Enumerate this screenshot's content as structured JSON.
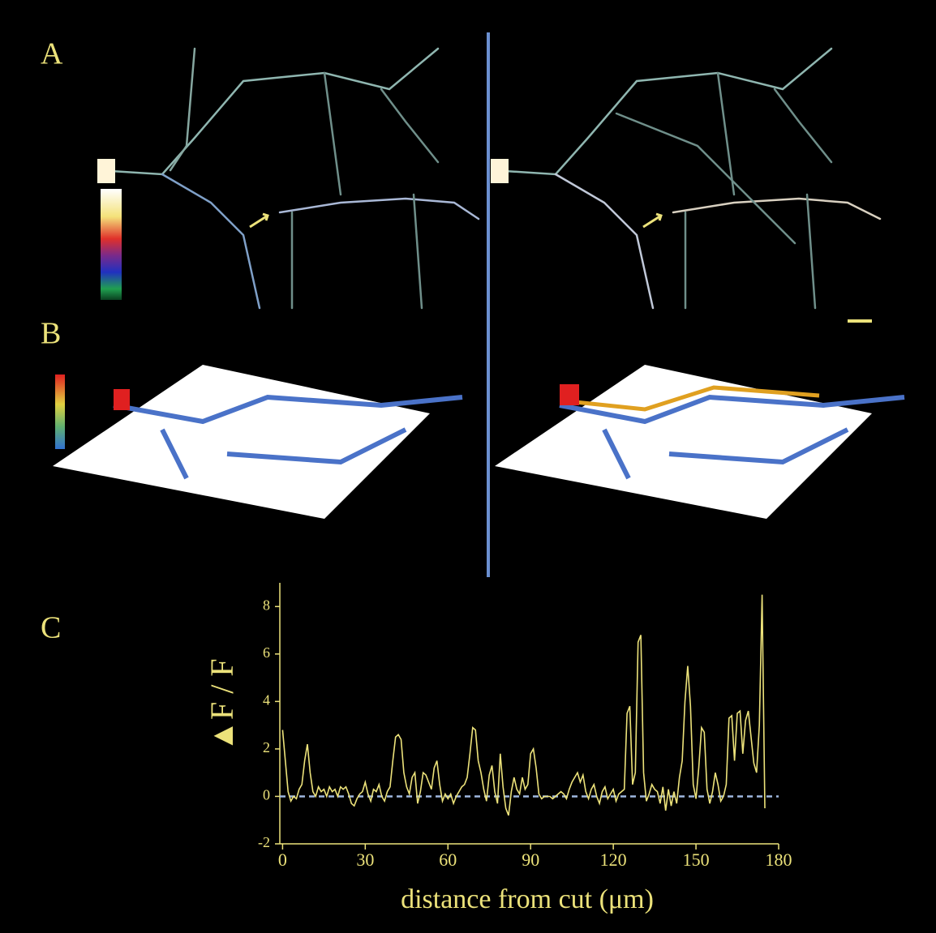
{
  "panel_labels": [
    "A",
    "B",
    "C"
  ],
  "chart_data": {
    "type": "line",
    "y_label": "▲F / F",
    "x_label": "distance from cut (μm)",
    "x": [
      0,
      1,
      2,
      3,
      4,
      5,
      6,
      7,
      8,
      9,
      10,
      11,
      12,
      13,
      14,
      15,
      16,
      17,
      18,
      19,
      20,
      21,
      22,
      23,
      24,
      25,
      26,
      27,
      28,
      29,
      30,
      31,
      32,
      33,
      34,
      35,
      36,
      37,
      38,
      39,
      40,
      41,
      42,
      43,
      44,
      45,
      46,
      47,
      48,
      49,
      50,
      51,
      52,
      53,
      54,
      55,
      56,
      57,
      58,
      59,
      60,
      61,
      62,
      63,
      64,
      65,
      66,
      67,
      68,
      69,
      70,
      71,
      72,
      73,
      74,
      75,
      76,
      77,
      78,
      79,
      80,
      81,
      82,
      83,
      84,
      85,
      86,
      87,
      88,
      89,
      90,
      91,
      92,
      93,
      94,
      95,
      96,
      97,
      98,
      99,
      100,
      101,
      102,
      103,
      104,
      105,
      106,
      107,
      108,
      109,
      110,
      111,
      112,
      113,
      114,
      115,
      116,
      117,
      118,
      119,
      120,
      121,
      122,
      123,
      124,
      125,
      126,
      127,
      128,
      129,
      130,
      131,
      132,
      133,
      134,
      135,
      136,
      137,
      138,
      139,
      140,
      141,
      142,
      143,
      144,
      145,
      146,
      147,
      148,
      149,
      150,
      151,
      152,
      153,
      154,
      155,
      156,
      157,
      158,
      159,
      160,
      161,
      162,
      163,
      164,
      165,
      166,
      167,
      168,
      169,
      170,
      171,
      172,
      173,
      174,
      175
    ],
    "values": [
      2.8,
      1.5,
      0.2,
      -0.2,
      0,
      -0.1,
      0.3,
      0.5,
      1.5,
      2.2,
      1.0,
      0.2,
      0,
      0.4,
      0.2,
      0.3,
      0,
      0.4,
      0.2,
      0.3,
      0,
      0.4,
      0.3,
      0.4,
      0.1,
      -0.3,
      -0.4,
      -0.1,
      0.1,
      0.2,
      0.6,
      0.1,
      -0.2,
      0.3,
      0.2,
      0.5,
      0,
      -0.2,
      0.2,
      0.4,
      1.5,
      2.5,
      2.6,
      2.4,
      1.0,
      0.4,
      0.1,
      0.8,
      1.0,
      -0.3,
      0.2,
      1.0,
      0.9,
      0.6,
      0.3,
      1.2,
      1.5,
      0.5,
      -0.2,
      0.1,
      -0.1,
      0.1,
      -0.3,
      0,
      0.2,
      0.4,
      0.5,
      0.8,
      1.8,
      2.9,
      2.8,
      1.5,
      1.0,
      0.3,
      -0.2,
      0.9,
      1.3,
      0.2,
      -0.3,
      1.8,
      0.4,
      -0.5,
      -0.8,
      0.2,
      0.8,
      0.3,
      0.1,
      0.8,
      0.3,
      0.5,
      1.8,
      2.0,
      1.2,
      0.1,
      -0.1,
      0,
      0,
      0,
      -0.1,
      0,
      0.1,
      0.2,
      0.1,
      -0.1,
      0.3,
      0.6,
      0.8,
      1.0,
      0.6,
      0.9,
      0.2,
      -0.1,
      0.3,
      0.5,
      0,
      -0.3,
      0.2,
      0.4,
      -0.1,
      0.1,
      0.3,
      -0.2,
      0.1,
      0.2,
      0.3,
      3.5,
      3.8,
      0.5,
      1.0,
      6.5,
      6.8,
      1.0,
      -0.2,
      0.1,
      0.5,
      0.3,
      0.2,
      -0.3,
      0.4,
      -0.6,
      0.3,
      -0.4,
      0.2,
      -0.3,
      0.8,
      1.5,
      4.0,
      5.5,
      3.8,
      0.5,
      -0.1,
      1.2,
      2.9,
      2.7,
      0.3,
      -0.3,
      0.2,
      1.0,
      0.5,
      -0.2,
      0,
      0.5,
      3.3,
      3.4,
      1.5,
      3.5,
      3.6,
      1.8,
      3.2,
      3.6,
      2.5,
      1.4,
      1.0,
      3.0,
      8.5,
      -0.5
    ],
    "color": "#ece27a",
    "reference_line": {
      "value": 0,
      "color": "#9fb8e0"
    },
    "xlim": [
      -1,
      180
    ],
    "xticks": [
      0,
      30,
      60,
      90,
      120,
      150,
      180
    ],
    "ylim": [
      -2,
      9
    ],
    "yticks": [
      -2,
      0,
      2,
      4,
      6,
      8
    ]
  }
}
